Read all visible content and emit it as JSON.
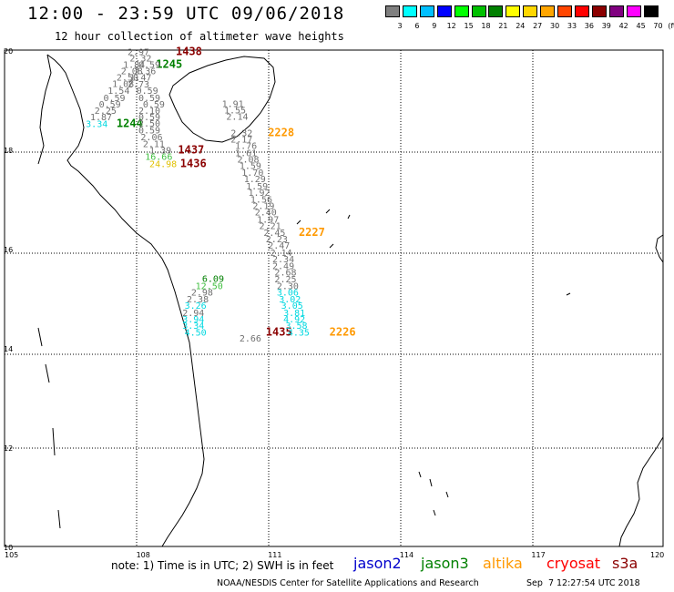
{
  "header": {
    "title": "12:00 - 23:59 UTC 09/06/2018",
    "subtitle": "12 hour collection of altimeter wave heights"
  },
  "legend": {
    "unit": "(ft)",
    "items": [
      {
        "label": "3",
        "color": "#7f7f7f"
      },
      {
        "label": "6",
        "color": "#00ffff"
      },
      {
        "label": "9",
        "color": "#00bfff"
      },
      {
        "label": "12",
        "color": "#0000ff"
      },
      {
        "label": "15",
        "color": "#00ff00"
      },
      {
        "label": "18",
        "color": "#00c000"
      },
      {
        "label": "21",
        "color": "#008000"
      },
      {
        "label": "24",
        "color": "#ffff00"
      },
      {
        "label": "27",
        "color": "#ffd700"
      },
      {
        "label": "30",
        "color": "#ffa500"
      },
      {
        "label": "33",
        "color": "#ff4500"
      },
      {
        "label": "36",
        "color": "#ff0000"
      },
      {
        "label": "39",
        "color": "#8b0000"
      },
      {
        "label": "42",
        "color": "#800080"
      },
      {
        "label": "45",
        "color": "#ff00ff"
      },
      {
        "label": "70",
        "color": "#000000"
      }
    ]
  },
  "axes": {
    "lon_ticks": [
      "105",
      "108",
      "111",
      "114",
      "117",
      "120"
    ],
    "lat_ticks": [
      "20",
      "18",
      "16",
      "14",
      "12",
      "10"
    ]
  },
  "colors": {
    "gray": "#707070",
    "cyan": "#00d8e0",
    "green": "#008000",
    "lightgreen": "#40c040",
    "yellow": "#e0c000",
    "orange": "#ff9900",
    "darkred": "#8b0000"
  },
  "passes": [
    {
      "time": "1438",
      "color": "darkred",
      "lon": 108.9,
      "lat": 19.97,
      "values": [
        {
          "v": "2.97",
          "lon": 107.8,
          "lat": 19.97,
          "c": "gray"
        },
        {
          "v": "2.32",
          "lon": 107.85,
          "lat": 19.84,
          "c": "gray"
        },
        {
          "v": "1.84",
          "lon": 107.7,
          "lat": 19.72,
          "c": "gray"
        },
        {
          "v": "2.08",
          "lon": 107.65,
          "lat": 19.59,
          "c": "gray"
        },
        {
          "v": "2.50",
          "lon": 107.55,
          "lat": 19.46,
          "c": "gray"
        },
        {
          "v": "1.08",
          "lon": 107.45,
          "lat": 19.33,
          "c": "gray"
        },
        {
          "v": "1.54",
          "lon": 107.35,
          "lat": 19.19,
          "c": "gray"
        },
        {
          "v": "0.59",
          "lon": 107.25,
          "lat": 19.05,
          "c": "gray"
        },
        {
          "v": "0.59",
          "lon": 107.15,
          "lat": 18.92,
          "c": "gray"
        },
        {
          "v": "2.25",
          "lon": 107.05,
          "lat": 18.79,
          "c": "gray"
        },
        {
          "v": "1.87",
          "lon": 106.95,
          "lat": 18.66,
          "c": "gray"
        },
        {
          "v": "3.34",
          "lon": 106.85,
          "lat": 18.52,
          "c": "cyan"
        }
      ]
    },
    {
      "time": "1245",
      "color": "green",
      "lon": 108.45,
      "lat": 19.72,
      "values": [
        {
          "v": "0.59",
          "lon": 108.05,
          "lat": 19.72,
          "c": "gray"
        },
        {
          "v": "2.36",
          "lon": 107.95,
          "lat": 19.59,
          "c": "gray"
        },
        {
          "v": "1.47",
          "lon": 107.85,
          "lat": 19.46,
          "c": "gray"
        },
        {
          "v": "2.73",
          "lon": 107.8,
          "lat": 19.32,
          "c": "gray"
        },
        {
          "v": "0.59",
          "lon": 108.0,
          "lat": 19.19,
          "c": "gray"
        },
        {
          "v": "0.59",
          "lon": 108.05,
          "lat": 19.05,
          "c": "gray"
        },
        {
          "v": "0.59",
          "lon": 108.15,
          "lat": 18.92,
          "c": "gray"
        },
        {
          "v": "2.10",
          "lon": 108.05,
          "lat": 18.79,
          "c": "gray"
        },
        {
          "v": "0.59",
          "lon": 108.05,
          "lat": 18.66,
          "c": "gray"
        },
        {
          "v": "2.50",
          "lon": 108.05,
          "lat": 18.53,
          "c": "gray"
        },
        {
          "v": "0.59",
          "lon": 108.05,
          "lat": 18.39,
          "c": "gray"
        },
        {
          "v": "2.06",
          "lon": 108.1,
          "lat": 18.26,
          "c": "gray"
        },
        {
          "v": "2.11",
          "lon": 108.15,
          "lat": 18.12,
          "c": "gray"
        },
        {
          "v": "1.39",
          "lon": 108.3,
          "lat": 17.99,
          "c": "gray"
        },
        {
          "v": "16.66",
          "lon": 108.2,
          "lat": 17.86,
          "c": "lightgreen"
        },
        {
          "v": "24.98",
          "lon": 108.3,
          "lat": 17.72,
          "c": "yellow"
        }
      ]
    },
    {
      "time": "1244",
      "color": "green",
      "lon": 107.55,
      "lat": 18.52,
      "values": []
    },
    {
      "time": "1437",
      "color": "darkred",
      "lon": 108.95,
      "lat": 17.99,
      "values": []
    },
    {
      "time": "1436",
      "color": "darkred",
      "lon": 109.0,
      "lat": 17.72,
      "values": []
    },
    {
      "time": "2228",
      "color": "orange",
      "lon": 111.0,
      "lat": 18.34,
      "values": [
        {
          "v": "1.91",
          "lon": 109.95,
          "lat": 18.93,
          "c": "gray"
        },
        {
          "v": "1.55",
          "lon": 110.0,
          "lat": 18.8,
          "c": "gray"
        },
        {
          "v": "2.14",
          "lon": 110.05,
          "lat": 18.67,
          "c": "gray"
        },
        {
          "v": "2.32",
          "lon": 110.15,
          "lat": 18.34,
          "c": "gray"
        },
        {
          "v": "2.17",
          "lon": 110.15,
          "lat": 18.21,
          "c": "gray"
        },
        {
          "v": "1.76",
          "lon": 110.25,
          "lat": 18.08,
          "c": "gray"
        },
        {
          "v": "1.61",
          "lon": 110.25,
          "lat": 17.94,
          "c": "gray"
        },
        {
          "v": "2.08",
          "lon": 110.3,
          "lat": 17.81,
          "c": "gray"
        },
        {
          "v": "1.59",
          "lon": 110.35,
          "lat": 17.68,
          "c": "gray"
        },
        {
          "v": "1.70",
          "lon": 110.4,
          "lat": 17.54,
          "c": "gray"
        },
        {
          "v": "1.29",
          "lon": 110.45,
          "lat": 17.41,
          "c": "gray"
        },
        {
          "v": "1.59",
          "lon": 110.5,
          "lat": 17.27,
          "c": "gray"
        },
        {
          "v": "1.92",
          "lon": 110.55,
          "lat": 17.14,
          "c": "gray"
        },
        {
          "v": "1.56",
          "lon": 110.6,
          "lat": 17.0,
          "c": "gray"
        },
        {
          "v": "2.19",
          "lon": 110.65,
          "lat": 16.87,
          "c": "gray"
        },
        {
          "v": "2.40",
          "lon": 110.7,
          "lat": 16.74,
          "c": "gray"
        },
        {
          "v": "1.97",
          "lon": 110.75,
          "lat": 16.6,
          "c": "gray"
        },
        {
          "v": "2.21",
          "lon": 110.8,
          "lat": 16.47,
          "c": "gray"
        },
        {
          "v": "2.45",
          "lon": 110.9,
          "lat": 16.33,
          "c": "gray"
        }
      ]
    },
    {
      "time": "2227",
      "color": "orange",
      "lon": 111.7,
      "lat": 16.33,
      "values": [
        {
          "v": "2.23",
          "lon": 110.95,
          "lat": 16.2,
          "c": "gray"
        },
        {
          "v": "2.47",
          "lon": 111.0,
          "lat": 16.07,
          "c": "gray"
        },
        {
          "v": "2.14",
          "lon": 111.05,
          "lat": 15.93,
          "c": "gray"
        },
        {
          "v": "2.34",
          "lon": 111.1,
          "lat": 15.8,
          "c": "gray"
        },
        {
          "v": "2.49",
          "lon": 111.1,
          "lat": 15.66,
          "c": "gray"
        },
        {
          "v": "2.68",
          "lon": 111.15,
          "lat": 15.53,
          "c": "gray"
        },
        {
          "v": "2.25",
          "lon": 111.15,
          "lat": 15.39,
          "c": "gray"
        },
        {
          "v": "2.30",
          "lon": 111.2,
          "lat": 15.26,
          "c": "gray"
        },
        {
          "v": "3.06",
          "lon": 111.2,
          "lat": 15.13,
          "c": "cyan"
        },
        {
          "v": "3.02",
          "lon": 111.25,
          "lat": 14.99,
          "c": "cyan"
        },
        {
          "v": "3.05",
          "lon": 111.3,
          "lat": 14.86,
          "c": "cyan"
        },
        {
          "v": "3.81",
          "lon": 111.35,
          "lat": 14.72,
          "c": "cyan"
        },
        {
          "v": "4.92",
          "lon": 111.35,
          "lat": 14.59,
          "c": "cyan"
        },
        {
          "v": "3.58",
          "lon": 111.4,
          "lat": 14.46,
          "c": "cyan"
        },
        {
          "v": "4.35",
          "lon": 111.45,
          "lat": 14.32,
          "c": "cyan"
        }
      ]
    },
    {
      "time": "2226",
      "color": "orange",
      "lon": 112.4,
      "lat": 14.32,
      "values": []
    },
    {
      "time": "1435",
      "color": "darkred",
      "lon": 110.95,
      "lat": 14.32,
      "values": [
        {
          "v": "6.09",
          "lon": 109.5,
          "lat": 15.4,
          "c": "green"
        },
        {
          "v": "12.50",
          "lon": 109.35,
          "lat": 15.26,
          "c": "lightgreen"
        },
        {
          "v": "2.98",
          "lon": 109.25,
          "lat": 15.13,
          "c": "gray"
        },
        {
          "v": "2.38",
          "lon": 109.15,
          "lat": 14.99,
          "c": "gray"
        },
        {
          "v": "3.26",
          "lon": 109.1,
          "lat": 14.86,
          "c": "cyan"
        },
        {
          "v": "2.94",
          "lon": 109.05,
          "lat": 14.72,
          "c": "gray"
        },
        {
          "v": "3.94",
          "lon": 109.05,
          "lat": 14.59,
          "c": "cyan"
        },
        {
          "v": "3.34",
          "lon": 109.05,
          "lat": 14.46,
          "c": "cyan"
        },
        {
          "v": "4.50",
          "lon": 109.1,
          "lat": 14.32,
          "c": "cyan"
        },
        {
          "v": "2.66",
          "lon": 110.35,
          "lat": 14.2,
          "c": "gray"
        }
      ]
    }
  ],
  "footer": {
    "note": "note: 1) Time is in UTC; 2) SWH is in feet",
    "missions": [
      {
        "label": "jason2",
        "color": "#0000cc"
      },
      {
        "label": "jason3",
        "color": "#008000"
      },
      {
        "label": "altika",
        "color": "#ff9900"
      },
      {
        "label": "cryosat",
        "color": "#ff0000"
      },
      {
        "label": "s3a",
        "color": "#8b0000"
      }
    ],
    "credit": "NOAA/NESDIS Center for Satellite Applications and Research",
    "generated": "Sep  7 12:27:54 UTC 2018"
  }
}
